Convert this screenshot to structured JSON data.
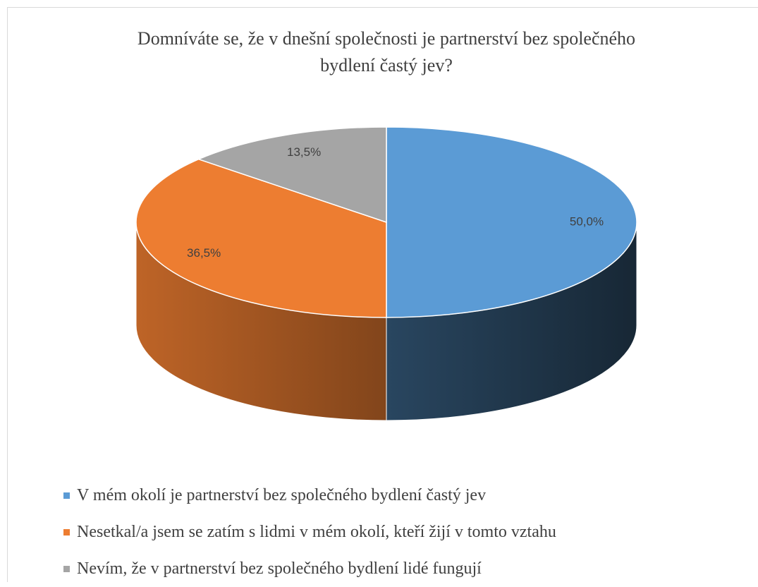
{
  "chart_data": {
    "type": "pie3d",
    "title": "Domníváte se, že v dnešní společnosti je partnerství bez společného bydlení častý jev?",
    "categories": [
      "V mém okolí je partnerství bez společného bydlení častý jev",
      "Nesetkal/a jsem se zatím s lidmi v mém okolí, kteří žijí v tomto vztahu",
      "Nevím, že v partnerství bez společného bydlení lidé fungují"
    ],
    "values": [
      50.0,
      36.5,
      13.5
    ],
    "value_labels": [
      "50,0%",
      "36,5%",
      "13,5%"
    ],
    "colors": [
      "#5b9bd5",
      "#ed7d31",
      "#a5a5a5"
    ]
  }
}
